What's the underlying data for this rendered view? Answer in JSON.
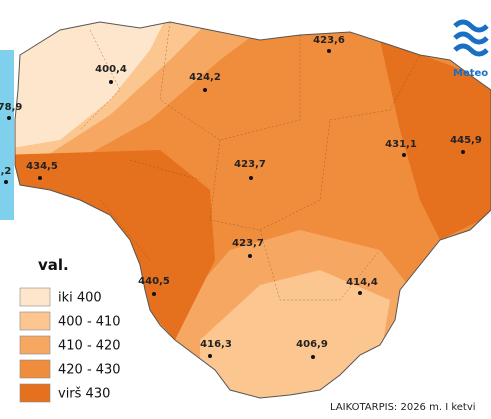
{
  "logo": {
    "text": "Meteo l"
  },
  "stations": [
    {
      "label": "400,4"
    },
    {
      "label": "423,6"
    },
    {
      "label": "424,2"
    },
    {
      "label": "78,9"
    },
    {
      "label": "431,1"
    },
    {
      "label": "445,9"
    },
    {
      "label": "423,7"
    },
    {
      "label": "434,5"
    },
    {
      "label": ",2"
    },
    {
      "label": "423,7"
    },
    {
      "label": "414,4"
    },
    {
      "label": "440,5"
    },
    {
      "label": "416,3"
    },
    {
      "label": "406,9"
    }
  ],
  "legend": {
    "title": "val.",
    "items": [
      {
        "label": "iki 400",
        "color": "#fde6cc"
      },
      {
        "label": "400 - 410",
        "color": "#fbc690"
      },
      {
        "label": "410 - 420",
        "color": "#f6a862"
      },
      {
        "label": "420 - 430",
        "color": "#f08d3c"
      },
      {
        "label": "virš 430",
        "color": "#e5701d"
      }
    ]
  },
  "footer": {
    "text": "LAIKOTARPIS: 2026 m. I ketvi"
  }
}
